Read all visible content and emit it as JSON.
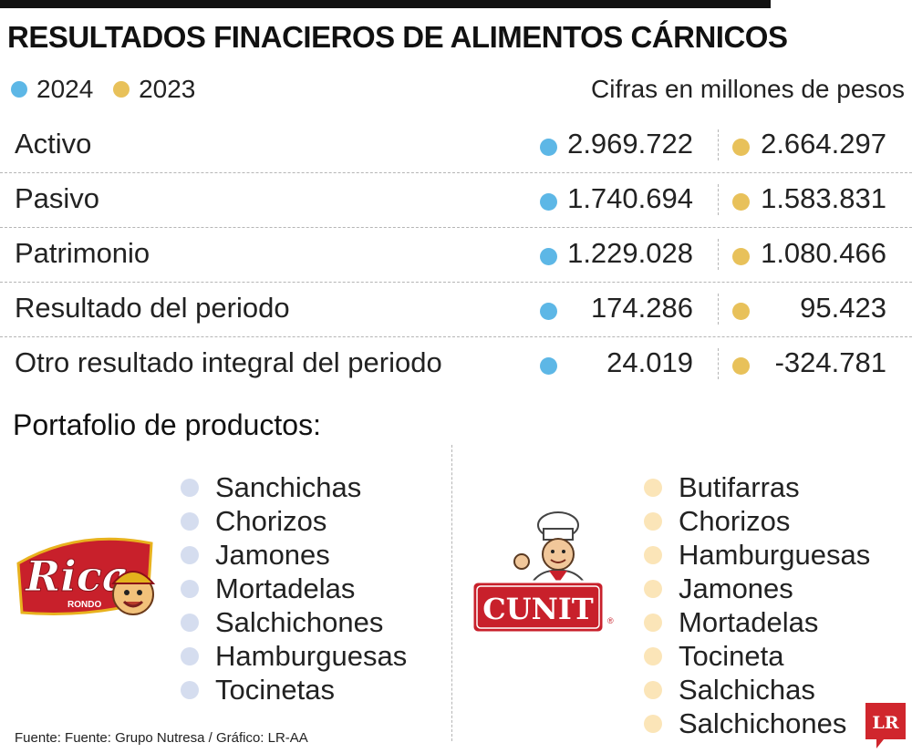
{
  "title": "RESULTADOS FINACIEROS DE ALIMENTOS CÁRNICOS",
  "legend": [
    {
      "label": "2024",
      "color": "#5db7e6"
    },
    {
      "label": "2023",
      "color": "#e8c15a"
    }
  ],
  "units": "Cifras en millones de pesos",
  "rows": [
    {
      "label": "Activo",
      "v2024": "2.969.722",
      "v2023": "2.664.297"
    },
    {
      "label": "Pasivo",
      "v2024": "1.740.694",
      "v2023": "1.583.831"
    },
    {
      "label": "Patrimonio",
      "v2024": "1.229.028",
      "v2023": "1.080.466"
    },
    {
      "label": "Resultado del periodo",
      "v2024": "174.286",
      "v2023": "95.423"
    },
    {
      "label": "Otro resultado integral del periodo",
      "v2024": "24.019",
      "v2023": "-324.781"
    }
  ],
  "portfolio": {
    "title": "Portafolio de productos:",
    "rica": {
      "logo_text": "Rica",
      "logo_subtext": "RONDO",
      "dot_color": "#d5ddef",
      "items": [
        "Sanchichas",
        "Chorizos",
        "Jamones",
        "Mortadelas",
        "Salchichones",
        "Hamburguesas",
        "Tocinetas"
      ]
    },
    "cunit": {
      "logo_text": "CUNIT",
      "dot_color": "#fbe5b8",
      "items": [
        "Butifarras",
        "Chorizos",
        "Hamburguesas",
        "Jamones",
        "Mortadelas",
        "Tocineta",
        "Salchichas",
        "Salchichones"
      ]
    }
  },
  "source": "Fuente: Fuente: Grupo Nutresa / Gráfico: LR-AA",
  "brand_logo": "LR",
  "colors": {
    "accent_2024": "#5db7e6",
    "accent_2023": "#e8c15a",
    "brand_red": "#d0262d"
  }
}
